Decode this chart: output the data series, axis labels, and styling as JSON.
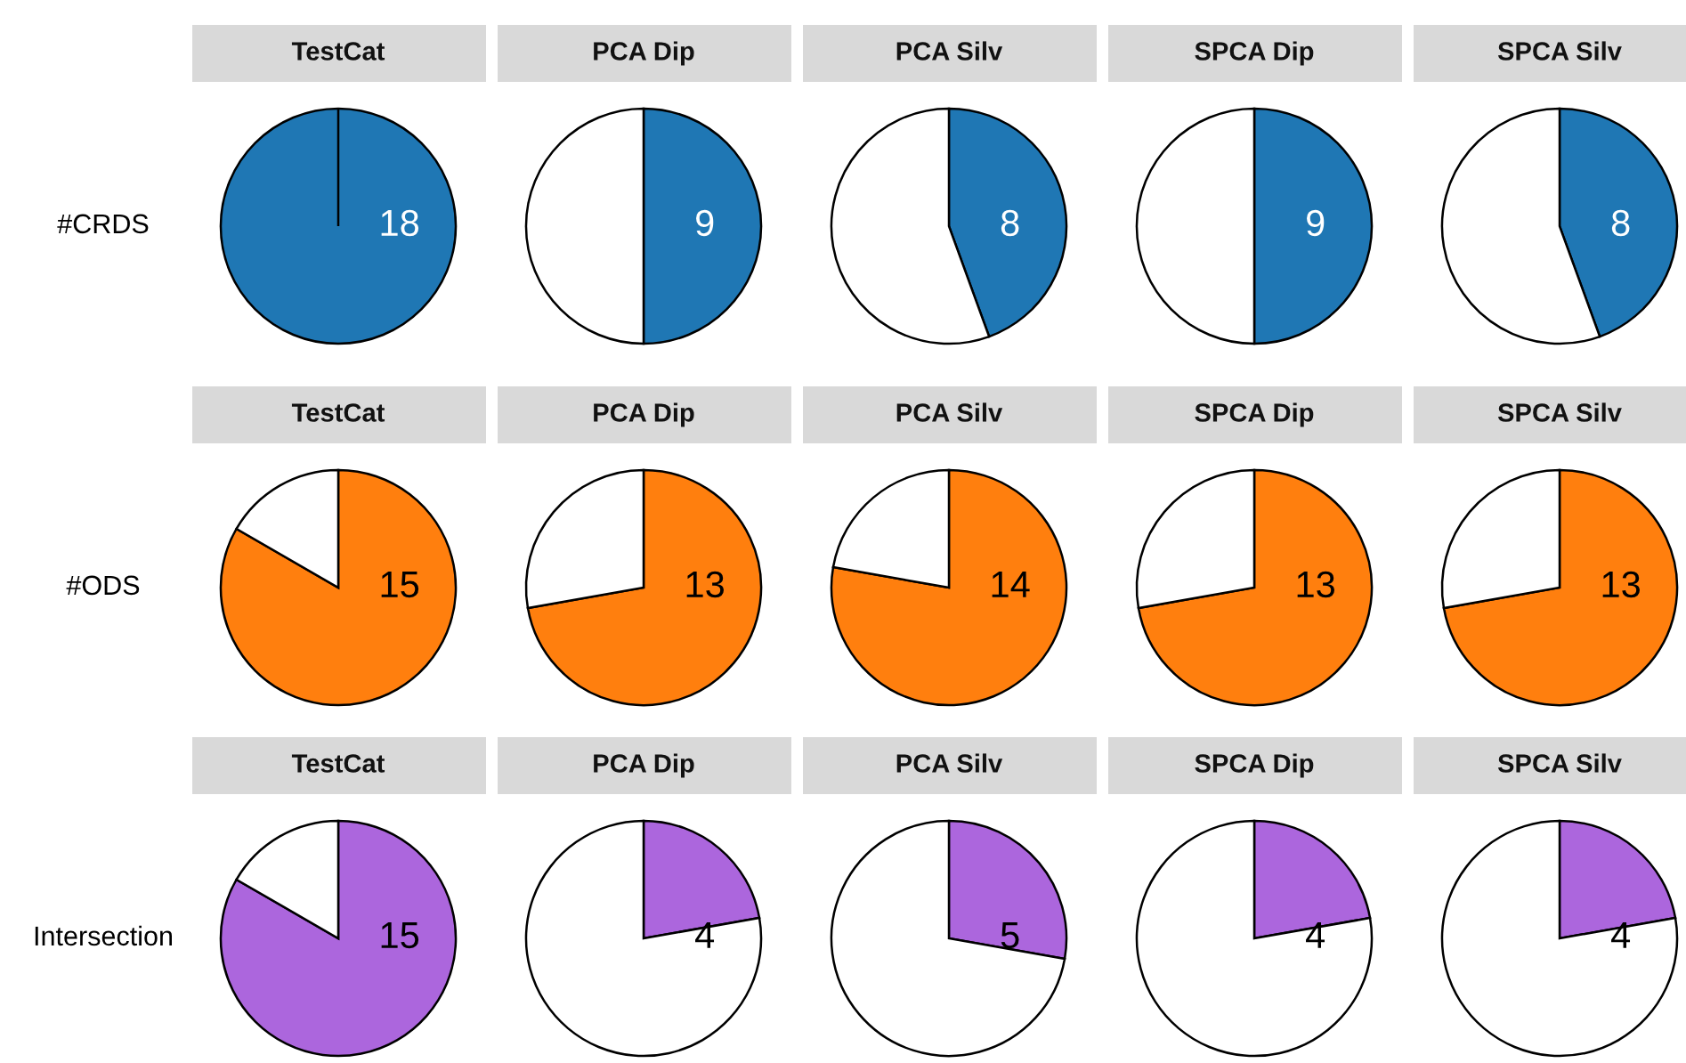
{
  "chart_data": [
    {
      "type": "pie",
      "title": "TestCat",
      "ylabel": "#CRDS",
      "categories": [
        null,
        null
      ],
      "values": [
        18,
        0
      ],
      "colors": [
        "#1f77b4",
        "#ffffff"
      ],
      "value_labels": [
        "18",
        null
      ]
    },
    {
      "type": "pie",
      "title": "PCA Dip",
      "categories": [
        null,
        null
      ],
      "values": [
        9,
        9
      ],
      "colors": [
        "#1f77b4",
        "#ffffff"
      ],
      "value_labels": [
        "9",
        null
      ]
    },
    {
      "type": "pie",
      "title": "PCA Silv",
      "categories": [
        null,
        null
      ],
      "values": [
        8,
        10
      ],
      "colors": [
        "#1f77b4",
        "#ffffff"
      ],
      "value_labels": [
        "8",
        null
      ]
    },
    {
      "type": "pie",
      "title": "SPCA Dip",
      "categories": [
        null,
        null
      ],
      "values": [
        9,
        9
      ],
      "colors": [
        "#1f77b4",
        "#ffffff"
      ],
      "value_labels": [
        "9",
        null
      ]
    },
    {
      "type": "pie",
      "title": "SPCA Silv",
      "categories": [
        null,
        null
      ],
      "values": [
        8,
        10
      ],
      "colors": [
        "#1f77b4",
        "#ffffff"
      ],
      "value_labels": [
        "8",
        null
      ]
    },
    {
      "type": "pie",
      "title": "TestCat",
      "ylabel": "#ODS",
      "categories": [
        null,
        null
      ],
      "values": [
        15,
        3
      ],
      "colors": [
        "#ff7f0e",
        "#ffffff"
      ],
      "value_labels": [
        "15",
        null
      ]
    },
    {
      "type": "pie",
      "title": "PCA Dip",
      "categories": [
        null,
        null
      ],
      "values": [
        13,
        5
      ],
      "colors": [
        "#ff7f0e",
        "#ffffff"
      ],
      "value_labels": [
        "13",
        null
      ]
    },
    {
      "type": "pie",
      "title": "PCA Silv",
      "categories": [
        null,
        null
      ],
      "values": [
        14,
        4
      ],
      "colors": [
        "#ff7f0e",
        "#ffffff"
      ],
      "value_labels": [
        "14",
        null
      ]
    },
    {
      "type": "pie",
      "title": "SPCA Dip",
      "categories": [
        null,
        null
      ],
      "values": [
        13,
        5
      ],
      "colors": [
        "#ff7f0e",
        "#ffffff"
      ],
      "value_labels": [
        "13",
        null
      ]
    },
    {
      "type": "pie",
      "title": "SPCA Silv",
      "categories": [
        null,
        null
      ],
      "values": [
        13,
        5
      ],
      "colors": [
        "#ff7f0e",
        "#ffffff"
      ],
      "value_labels": [
        "13",
        null
      ]
    },
    {
      "type": "pie",
      "title": "TestCat",
      "ylabel": "Intersection",
      "categories": [
        null,
        null
      ],
      "values": [
        15,
        3
      ],
      "colors": [
        "#ac66dd",
        "#ffffff"
      ],
      "value_labels": [
        "15",
        null
      ]
    },
    {
      "type": "pie",
      "title": "PCA Dip",
      "categories": [
        null,
        null
      ],
      "values": [
        4,
        14
      ],
      "colors": [
        "#ac66dd",
        "#ffffff"
      ],
      "value_labels": [
        "4",
        null
      ]
    },
    {
      "type": "pie",
      "title": "PCA Silv",
      "categories": [
        null,
        null
      ],
      "values": [
        5,
        13
      ],
      "colors": [
        "#ac66dd",
        "#ffffff"
      ],
      "value_labels": [
        "5",
        null
      ]
    },
    {
      "type": "pie",
      "title": "SPCA Dip",
      "categories": [
        null,
        null
      ],
      "values": [
        4,
        14
      ],
      "colors": [
        "#ac66dd",
        "#ffffff"
      ],
      "value_labels": [
        "4",
        null
      ]
    },
    {
      "type": "pie",
      "title": "SPCA Silv",
      "categories": [
        null,
        null
      ],
      "values": [
        4,
        14
      ],
      "colors": [
        "#ac66dd",
        "#ffffff"
      ],
      "value_labels": [
        "4",
        null
      ]
    }
  ]
}
